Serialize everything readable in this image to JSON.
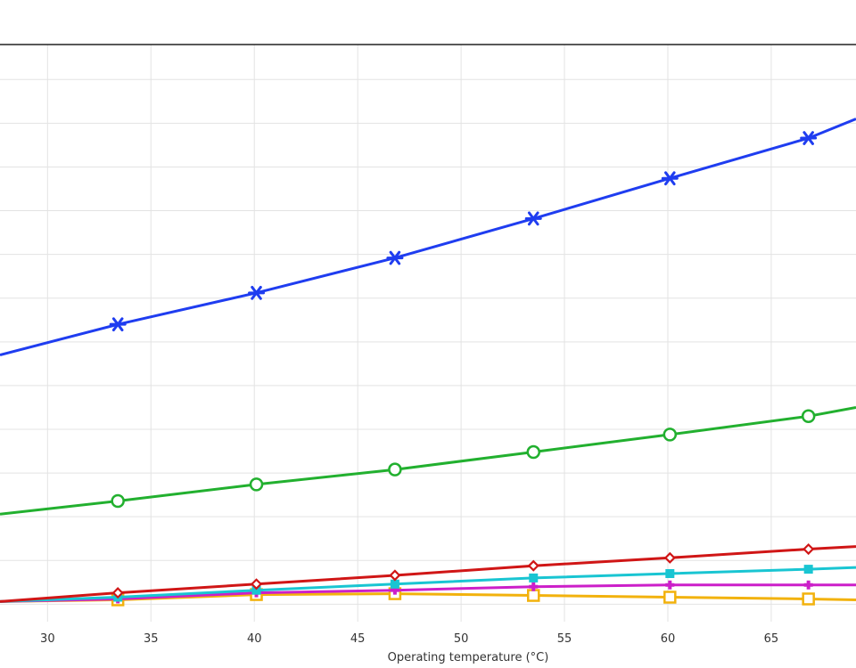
{
  "chart_data": {
    "type": "line",
    "title": "",
    "xlabel": "Operating temperature (°C)",
    "ylabel": "",
    "xlim": [
      27.7,
      69.1
    ],
    "ylim": [
      -0.2,
      6.4
    ],
    "xticks": [
      "30",
      "35",
      "40",
      "45",
      "50",
      "55",
      "60",
      "65"
    ],
    "ygrid": [
      0,
      0.5,
      1,
      1.5,
      2,
      2.5,
      3,
      3.5,
      4,
      4.5,
      5,
      5.5,
      6
    ],
    "grid": true,
    "legend": "none",
    "series": [
      {
        "color": "#1f3df0",
        "marker": "asterisk",
        "x": [
          27.7,
          33.4,
          40.1,
          46.8,
          53.5,
          60.1,
          66.8,
          69.1
        ],
        "y": [
          2.85,
          3.2,
          3.56,
          3.96,
          4.41,
          4.87,
          5.33,
          5.55
        ]
      },
      {
        "color": "#22b02f",
        "marker": "circle",
        "x": [
          27.7,
          33.4,
          40.1,
          46.8,
          53.5,
          60.1,
          66.8,
          69.1
        ],
        "y": [
          1.03,
          1.18,
          1.37,
          1.54,
          1.74,
          1.94,
          2.15,
          2.25
        ]
      },
      {
        "color": "#d01616",
        "marker": "diamond",
        "x": [
          27.7,
          33.4,
          40.1,
          46.8,
          53.5,
          60.1,
          66.8,
          69.1
        ],
        "y": [
          0.03,
          0.13,
          0.23,
          0.33,
          0.44,
          0.53,
          0.63,
          0.66
        ]
      },
      {
        "color": "#19c5d2",
        "marker": "square-filled",
        "x": [
          27.7,
          33.4,
          40.1,
          46.8,
          53.5,
          60.1,
          66.8,
          69.1
        ],
        "y": [
          0.03,
          0.08,
          0.16,
          0.23,
          0.3,
          0.35,
          0.4,
          0.42
        ]
      },
      {
        "color": "#cc1fc9",
        "marker": "plus",
        "x": [
          27.7,
          33.4,
          40.1,
          46.8,
          53.5,
          60.1,
          66.8,
          69.1
        ],
        "y": [
          0.03,
          0.06,
          0.13,
          0.16,
          0.2,
          0.22,
          0.22,
          0.22
        ]
      },
      {
        "color": "#f2b20d",
        "marker": "square-open",
        "x": [
          27.7,
          33.4,
          40.1,
          46.8,
          53.5,
          60.1,
          66.8,
          69.1
        ],
        "y": [
          0.03,
          0.05,
          0.11,
          0.12,
          0.1,
          0.08,
          0.06,
          0.05
        ]
      }
    ]
  }
}
